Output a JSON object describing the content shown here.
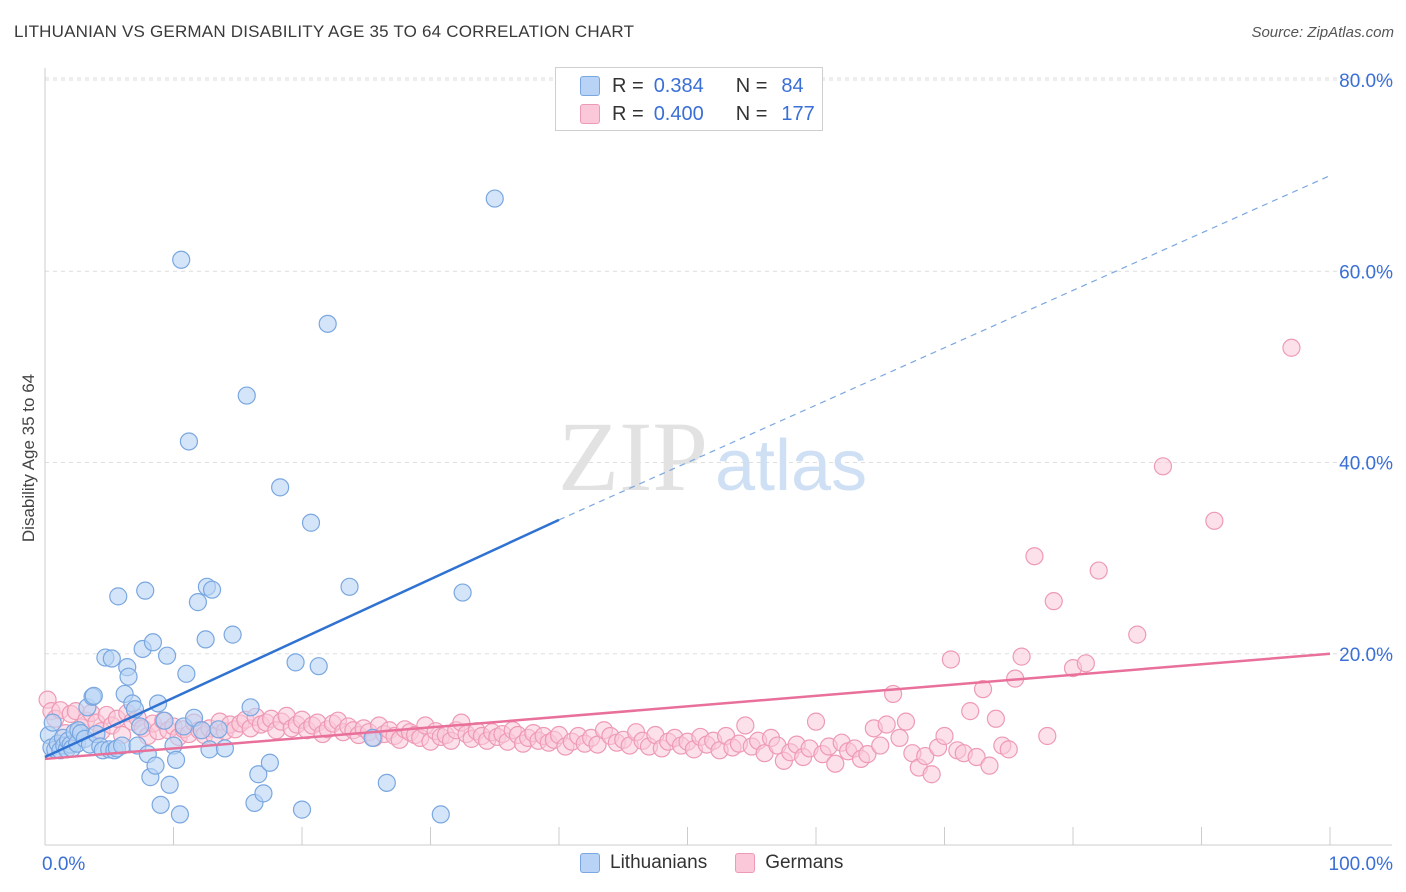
{
  "header": {
    "title": "LITHUANIAN VS GERMAN DISABILITY AGE 35 TO 64 CORRELATION CHART",
    "source": "Source: ZipAtlas.com"
  },
  "watermark": {
    "zip": "ZIP",
    "atlas": "atlas"
  },
  "stats_legend": {
    "blue": {
      "r_label": "R =",
      "r_value": "0.384",
      "n_label": "N =",
      "n_value": "84"
    },
    "pink": {
      "r_label": "R =",
      "r_value": "0.400",
      "n_label": "N =",
      "n_value": "177"
    }
  },
  "bottom_legend": {
    "blue_label": "Lithuanians",
    "pink_label": "Germans"
  },
  "colors": {
    "blue_fill": "#b8d3f5",
    "blue_stroke": "#7aa7e0",
    "blue_line": "#2f72d2",
    "pink_fill": "#fac8d8",
    "pink_stroke": "#ee9ab5",
    "pink_line": "#e8709a",
    "axis_label": "#3a6fd6"
  },
  "chart_data": {
    "type": "scatter",
    "title": "LITHUANIAN VS GERMAN DISABILITY AGE 35 TO 64 CORRELATION CHART",
    "xlabel": "",
    "ylabel": "Disability Age 35 to 64",
    "xlim": [
      0,
      100
    ],
    "ylim": [
      0,
      80
    ],
    "x_tick_labels": {
      "min": "0.0%",
      "max": "100.0%"
    },
    "y_ticks": [
      {
        "value": 20,
        "label": "20.0%"
      },
      {
        "value": 40,
        "label": "40.0%"
      },
      {
        "value": 60,
        "label": "60.0%"
      },
      {
        "value": 80,
        "label": "80.0%"
      }
    ],
    "series": [
      {
        "name": "Lithuanians",
        "r": 0.384,
        "n": 84,
        "trend": {
          "x0": 0,
          "y0": 9.2,
          "x1": 40,
          "y1": 34.0,
          "dashed_to_x": 100,
          "dashed_to_y": 70.0
        },
        "points": [
          [
            0.3,
            11.5
          ],
          [
            0.5,
            10.2
          ],
          [
            0.6,
            12.8
          ],
          [
            0.8,
            10.0
          ],
          [
            1.0,
            10.6
          ],
          [
            1.2,
            9.9
          ],
          [
            1.4,
            11.2
          ],
          [
            1.5,
            10.4
          ],
          [
            1.7,
            10.0
          ],
          [
            1.8,
            10.9
          ],
          [
            2.0,
            10.5
          ],
          [
            2.1,
            10.1
          ],
          [
            2.3,
            11.8
          ],
          [
            2.5,
            10.6
          ],
          [
            2.6,
            12.0
          ],
          [
            2.8,
            11.7
          ],
          [
            3.1,
            11.1
          ],
          [
            3.3,
            14.4
          ],
          [
            3.5,
            10.5
          ],
          [
            3.7,
            15.5
          ],
          [
            3.8,
            15.6
          ],
          [
            4.0,
            11.6
          ],
          [
            4.3,
            10.3
          ],
          [
            4.5,
            9.9
          ],
          [
            4.7,
            19.6
          ],
          [
            5.0,
            10.0
          ],
          [
            5.2,
            19.5
          ],
          [
            5.4,
            9.9
          ],
          [
            5.6,
            10.1
          ],
          [
            5.7,
            26.0
          ],
          [
            6.0,
            10.4
          ],
          [
            6.2,
            15.8
          ],
          [
            6.4,
            18.6
          ],
          [
            6.5,
            17.6
          ],
          [
            6.8,
            14.8
          ],
          [
            7.0,
            14.2
          ],
          [
            7.2,
            10.4
          ],
          [
            7.4,
            12.4
          ],
          [
            7.6,
            20.5
          ],
          [
            7.8,
            26.6
          ],
          [
            8.0,
            9.5
          ],
          [
            8.2,
            7.1
          ],
          [
            8.4,
            21.2
          ],
          [
            8.6,
            8.3
          ],
          [
            8.8,
            14.8
          ],
          [
            9.0,
            4.2
          ],
          [
            9.3,
            13.0
          ],
          [
            9.5,
            19.8
          ],
          [
            9.7,
            6.3
          ],
          [
            10.0,
            10.4
          ],
          [
            10.2,
            8.9
          ],
          [
            10.5,
            3.2
          ],
          [
            10.8,
            12.4
          ],
          [
            11.0,
            17.9
          ],
          [
            11.2,
            42.2
          ],
          [
            11.6,
            13.3
          ],
          [
            11.9,
            25.4
          ],
          [
            12.2,
            12.0
          ],
          [
            12.5,
            21.5
          ],
          [
            12.6,
            27.0
          ],
          [
            12.8,
            10.0
          ],
          [
            13.0,
            26.7
          ],
          [
            13.5,
            12.1
          ],
          [
            14.0,
            10.1
          ],
          [
            14.6,
            22.0
          ],
          [
            10.6,
            61.2
          ],
          [
            15.7,
            47.0
          ],
          [
            16.0,
            14.4
          ],
          [
            16.3,
            4.4
          ],
          [
            16.6,
            7.4
          ],
          [
            17.0,
            5.4
          ],
          [
            17.5,
            8.6
          ],
          [
            18.3,
            37.4
          ],
          [
            19.5,
            19.1
          ],
          [
            20.0,
            3.7
          ],
          [
            20.7,
            33.7
          ],
          [
            21.3,
            18.7
          ],
          [
            22.0,
            54.5
          ],
          [
            23.7,
            27.0
          ],
          [
            25.5,
            11.2
          ],
          [
            26.6,
            6.5
          ],
          [
            30.8,
            3.2
          ],
          [
            32.5,
            26.4
          ],
          [
            35.0,
            67.6
          ]
        ]
      },
      {
        "name": "Germans",
        "r": 0.4,
        "n": 177,
        "trend": {
          "x0": 0,
          "y0": 9.0,
          "x1": 100,
          "y1": 20.0
        },
        "points": [
          [
            0.2,
            15.2
          ],
          [
            0.5,
            14.0
          ],
          [
            0.8,
            13.2
          ],
          [
            1.2,
            14.1
          ],
          [
            1.6,
            11.7
          ],
          [
            2.0,
            13.7
          ],
          [
            2.4,
            14.0
          ],
          [
            2.8,
            12.3
          ],
          [
            3.2,
            13.0
          ],
          [
            3.6,
            13.8
          ],
          [
            4.0,
            12.8
          ],
          [
            4.4,
            11.9
          ],
          [
            4.8,
            13.6
          ],
          [
            5.2,
            12.5
          ],
          [
            5.6,
            13.2
          ],
          [
            6.0,
            11.5
          ],
          [
            6.4,
            13.8
          ],
          [
            6.8,
            12.9
          ],
          [
            7.2,
            13.3
          ],
          [
            7.6,
            12.2
          ],
          [
            8.0,
            11.4
          ],
          [
            8.4,
            12.7
          ],
          [
            8.8,
            11.9
          ],
          [
            9.2,
            13.0
          ],
          [
            9.6,
            12.0
          ],
          [
            10.0,
            12.4
          ],
          [
            10.4,
            11.3
          ],
          [
            10.8,
            12.1
          ],
          [
            11.2,
            11.6
          ],
          [
            11.6,
            12.8
          ],
          [
            12.0,
            12.0
          ],
          [
            12.4,
            11.5
          ],
          [
            12.8,
            12.2
          ],
          [
            13.2,
            11.4
          ],
          [
            13.6,
            12.9
          ],
          [
            14.0,
            11.9
          ],
          [
            14.4,
            12.6
          ],
          [
            14.8,
            12.1
          ],
          [
            15.2,
            12.7
          ],
          [
            15.6,
            13.1
          ],
          [
            16.0,
            12.2
          ],
          [
            16.4,
            13.4
          ],
          [
            16.8,
            12.6
          ],
          [
            17.2,
            12.8
          ],
          [
            17.6,
            13.2
          ],
          [
            18.0,
            12.0
          ],
          [
            18.4,
            12.9
          ],
          [
            18.8,
            13.5
          ],
          [
            19.2,
            12.2
          ],
          [
            19.6,
            12.6
          ],
          [
            20.0,
            13.1
          ],
          [
            20.4,
            12.0
          ],
          [
            20.8,
            12.5
          ],
          [
            21.2,
            12.8
          ],
          [
            21.6,
            11.6
          ],
          [
            22.0,
            12.1
          ],
          [
            22.4,
            12.7
          ],
          [
            22.8,
            13.0
          ],
          [
            23.2,
            11.8
          ],
          [
            23.6,
            12.4
          ],
          [
            24.0,
            12.0
          ],
          [
            24.4,
            11.5
          ],
          [
            24.8,
            12.2
          ],
          [
            25.2,
            11.8
          ],
          [
            25.6,
            11.2
          ],
          [
            26.0,
            12.5
          ],
          [
            26.4,
            11.6
          ],
          [
            26.8,
            12.0
          ],
          [
            27.2,
            11.4
          ],
          [
            27.6,
            11.0
          ],
          [
            28.0,
            12.1
          ],
          [
            28.4,
            11.8
          ],
          [
            28.8,
            11.5
          ],
          [
            29.2,
            11.2
          ],
          [
            29.6,
            12.5
          ],
          [
            30.0,
            10.8
          ],
          [
            30.4,
            11.9
          ],
          [
            30.8,
            11.3
          ],
          [
            31.2,
            11.5
          ],
          [
            31.6,
            10.9
          ],
          [
            32.0,
            12.0
          ],
          [
            32.4,
            12.8
          ],
          [
            32.8,
            11.6
          ],
          [
            33.2,
            11.1
          ],
          [
            33.6,
            11.9
          ],
          [
            34.0,
            11.4
          ],
          [
            34.4,
            10.9
          ],
          [
            34.8,
            11.8
          ],
          [
            35.2,
            11.3
          ],
          [
            35.6,
            11.6
          ],
          [
            36.0,
            10.8
          ],
          [
            36.4,
            12.0
          ],
          [
            36.8,
            11.5
          ],
          [
            37.2,
            10.6
          ],
          [
            37.6,
            11.2
          ],
          [
            38.0,
            11.7
          ],
          [
            38.4,
            10.9
          ],
          [
            38.8,
            11.4
          ],
          [
            39.2,
            10.7
          ],
          [
            39.6,
            11.0
          ],
          [
            40.0,
            11.5
          ],
          [
            40.5,
            10.3
          ],
          [
            41.0,
            10.8
          ],
          [
            41.5,
            11.4
          ],
          [
            42.0,
            10.6
          ],
          [
            42.5,
            11.2
          ],
          [
            43.0,
            10.5
          ],
          [
            43.5,
            12.0
          ],
          [
            44.0,
            11.4
          ],
          [
            44.5,
            10.7
          ],
          [
            45.0,
            11.0
          ],
          [
            45.5,
            10.4
          ],
          [
            46.0,
            11.8
          ],
          [
            46.5,
            10.9
          ],
          [
            47.0,
            10.3
          ],
          [
            47.5,
            11.5
          ],
          [
            48.0,
            10.1
          ],
          [
            48.5,
            10.8
          ],
          [
            49.0,
            11.2
          ],
          [
            49.5,
            10.4
          ],
          [
            50.0,
            10.8
          ],
          [
            50.5,
            10.0
          ],
          [
            51.0,
            11.3
          ],
          [
            51.5,
            10.5
          ],
          [
            52.0,
            10.9
          ],
          [
            52.5,
            9.9
          ],
          [
            53.0,
            11.4
          ],
          [
            53.5,
            10.2
          ],
          [
            54.0,
            10.6
          ],
          [
            54.5,
            12.5
          ],
          [
            55.0,
            10.3
          ],
          [
            55.5,
            10.9
          ],
          [
            56.0,
            9.6
          ],
          [
            56.5,
            11.2
          ],
          [
            57.0,
            10.4
          ],
          [
            57.5,
            8.8
          ],
          [
            58.0,
            9.7
          ],
          [
            58.5,
            10.5
          ],
          [
            59.0,
            9.2
          ],
          [
            59.5,
            10.1
          ],
          [
            60.0,
            12.9
          ],
          [
            60.5,
            9.5
          ],
          [
            61.0,
            10.3
          ],
          [
            61.5,
            8.5
          ],
          [
            62.0,
            10.7
          ],
          [
            62.5,
            9.8
          ],
          [
            63.0,
            10.1
          ],
          [
            63.5,
            9.0
          ],
          [
            64.0,
            9.5
          ],
          [
            64.5,
            12.2
          ],
          [
            65.0,
            10.4
          ],
          [
            65.5,
            12.6
          ],
          [
            66.0,
            15.8
          ],
          [
            66.5,
            11.2
          ],
          [
            67.0,
            12.9
          ],
          [
            67.5,
            9.6
          ],
          [
            68.0,
            8.1
          ],
          [
            68.5,
            9.3
          ],
          [
            69.0,
            7.4
          ],
          [
            69.5,
            10.2
          ],
          [
            70.0,
            11.4
          ],
          [
            70.5,
            19.4
          ],
          [
            71.0,
            9.9
          ],
          [
            71.5,
            9.6
          ],
          [
            72.0,
            14.0
          ],
          [
            72.5,
            9.2
          ],
          [
            73.0,
            16.3
          ],
          [
            73.5,
            8.3
          ],
          [
            74.0,
            13.2
          ],
          [
            74.5,
            10.4
          ],
          [
            75.0,
            10.0
          ],
          [
            75.5,
            17.4
          ],
          [
            76.0,
            19.7
          ],
          [
            77.0,
            30.2
          ],
          [
            78.0,
            11.4
          ],
          [
            78.5,
            25.5
          ],
          [
            80.0,
            18.5
          ],
          [
            81.0,
            19.0
          ],
          [
            82.0,
            28.7
          ],
          [
            85.0,
            22.0
          ],
          [
            87.0,
            39.6
          ],
          [
            91.0,
            33.9
          ],
          [
            97.0,
            52.0
          ]
        ]
      }
    ]
  }
}
